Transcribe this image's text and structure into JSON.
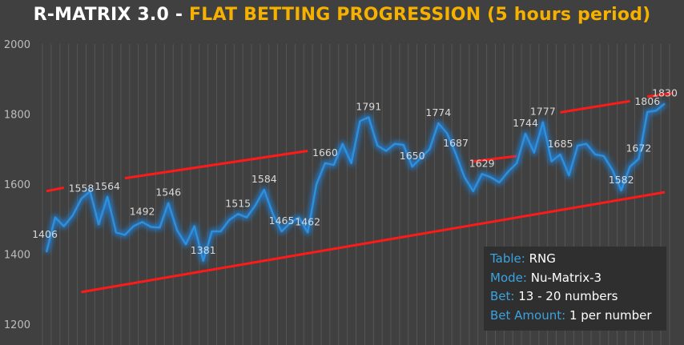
{
  "title": {
    "part1": "R-MATRIX 3.0 - ",
    "part2": "FLAT BETTING PROGRESSION (5 hours period)"
  },
  "info_box": {
    "table_label": "Table:",
    "table_value": "RNG",
    "mode_label": "Mode:",
    "mode_value": "Nu-Matrix-3",
    "bet_label": "Bet:",
    "bet_value": "13 - 20 numbers",
    "amount_label": "Bet Amount:",
    "amount_value": "1  per number"
  },
  "colors": {
    "background": "#404040",
    "line": "#2e8fdc",
    "glow": "#1f7fd6",
    "trend": "#ff1a1a",
    "title_accent": "#f5b000",
    "info_key": "#3ba3e0"
  },
  "chart_data": {
    "type": "line",
    "title": "R-MATRIX 3.0 - FLAT BETTING PROGRESSION (5 hours period)",
    "ylim": [
      1150,
      2000
    ],
    "yticks": [
      1200,
      1400,
      1600,
      1800,
      2000
    ],
    "grid": "vertical",
    "y": [
      1406,
      1505,
      1480,
      1510,
      1558,
      1580,
      1485,
      1564,
      1462,
      1455,
      1480,
      1492,
      1478,
      1476,
      1546,
      1468,
      1428,
      1480,
      1381,
      1465,
      1465,
      1498,
      1515,
      1505,
      1540,
      1584,
      1515,
      1465,
      1490,
      1505,
      1462,
      1600,
      1660,
      1655,
      1715,
      1660,
      1780,
      1791,
      1710,
      1695,
      1715,
      1712,
      1650,
      1675,
      1700,
      1774,
      1745,
      1687,
      1620,
      1580,
      1629,
      1620,
      1605,
      1635,
      1660,
      1744,
      1690,
      1777,
      1665,
      1685,
      1625,
      1710,
      1715,
      1685,
      1680,
      1640,
      1582,
      1650,
      1672,
      1806,
      1810,
      1830
    ],
    "point_labels": [
      {
        "i": 0,
        "text": "1406"
      },
      {
        "i": 4,
        "text": "1558"
      },
      {
        "i": 7,
        "text": "1564"
      },
      {
        "i": 11,
        "text": "1492"
      },
      {
        "i": 14,
        "text": "1546"
      },
      {
        "i": 18,
        "text": "1381"
      },
      {
        "i": 22,
        "text": "1515"
      },
      {
        "i": 25,
        "text": "1584"
      },
      {
        "i": 27,
        "text": "1465"
      },
      {
        "i": 30,
        "text": "1462"
      },
      {
        "i": 32,
        "text": "1660"
      },
      {
        "i": 37,
        "text": "1791"
      },
      {
        "i": 42,
        "text": "1650"
      },
      {
        "i": 45,
        "text": "1774"
      },
      {
        "i": 47,
        "text": "1687"
      },
      {
        "i": 50,
        "text": "1629"
      },
      {
        "i": 55,
        "text": "1744"
      },
      {
        "i": 57,
        "text": "1777"
      },
      {
        "i": 59,
        "text": "1685"
      },
      {
        "i": 66,
        "text": "1582"
      },
      {
        "i": 68,
        "text": "1672"
      },
      {
        "i": 69,
        "text": "1806"
      },
      {
        "i": 71,
        "text": "1830"
      }
    ],
    "trend_lines": [
      {
        "x1": 0,
        "y1": 1580,
        "x2": 2,
        "y2": 1590
      },
      {
        "x1": 9,
        "y1": 1617,
        "x2": 30,
        "y2": 1695
      },
      {
        "x1": 4,
        "y1": 1292,
        "x2": 71,
        "y2": 1577
      },
      {
        "x1": 49,
        "y1": 1665,
        "x2": 54,
        "y2": 1680
      },
      {
        "x1": 59,
        "y1": 1805,
        "x2": 67,
        "y2": 1837
      },
      {
        "x1": 69,
        "y1": 1850,
        "x2": 72,
        "y2": 1860
      }
    ]
  }
}
